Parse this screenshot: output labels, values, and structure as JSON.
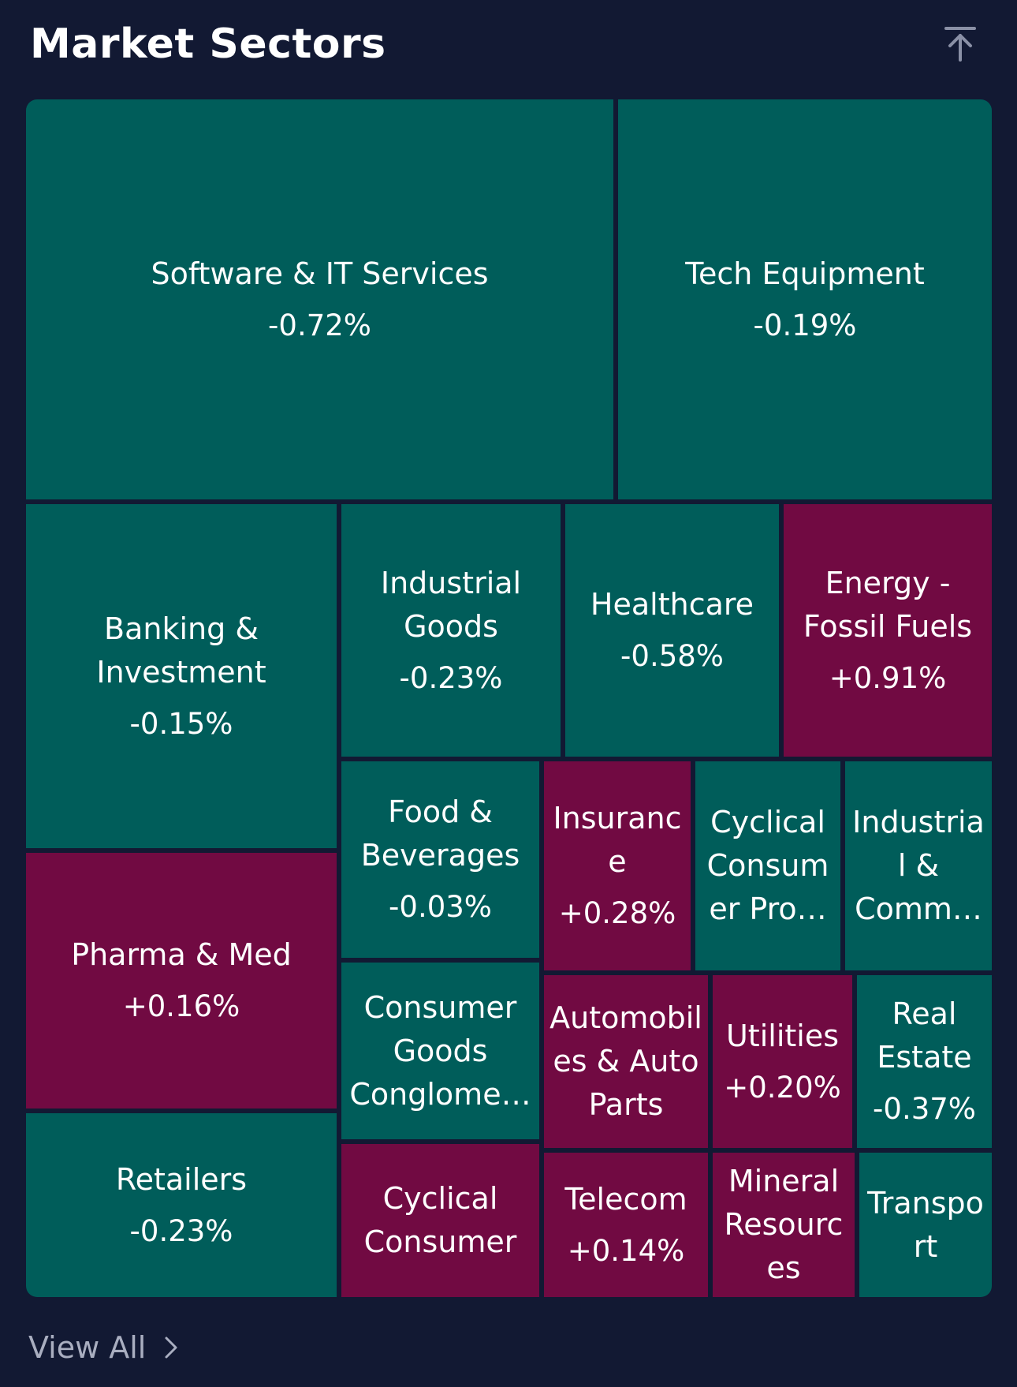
{
  "header": {
    "title": "Market Sectors",
    "collapse_icon": "arrow-up-to-top-icon"
  },
  "colors": {
    "background": "#121933",
    "negative_tile": "#005d5a",
    "positive_tile": "#710a42",
    "muted_text": "#a9aec0"
  },
  "sectors": [
    {
      "name": "Software & IT Services",
      "change": "-0.72%"
    },
    {
      "name": "Tech Equipment",
      "change": "-0.19%"
    },
    {
      "name": "Banking & Investment",
      "change": "-0.15%"
    },
    {
      "name": "Industrial Goods",
      "change": "-0.23%"
    },
    {
      "name": "Healthcare",
      "change": "-0.58%"
    },
    {
      "name": "Energy - Fossil Fuels",
      "change": "+0.91%"
    },
    {
      "name": "Pharma & Med",
      "change": "+0.16%"
    },
    {
      "name": "Food & Beverages",
      "change": "-0.03%"
    },
    {
      "name": "Insurance",
      "change": "+0.28%"
    },
    {
      "name": "Cyclical Consumer Pro…",
      "change": ""
    },
    {
      "name": "Industrial & Comm…",
      "change": ""
    },
    {
      "name": "Retailers",
      "change": "-0.23%"
    },
    {
      "name": "Consumer Goods Conglome…",
      "change": ""
    },
    {
      "name": "Automobiles & Auto Parts",
      "change": ""
    },
    {
      "name": "Utilities",
      "change": "+0.20%"
    },
    {
      "name": "Real Estate",
      "change": "-0.37%"
    },
    {
      "name": "Cyclical Consumer",
      "change": ""
    },
    {
      "name": "Telecom",
      "change": "+0.14%"
    },
    {
      "name": "Mineral Resources",
      "change": ""
    },
    {
      "name": "Transport",
      "change": ""
    }
  ],
  "footer": {
    "view_all_label": "View All",
    "chevron_icon": "chevron-right-icon"
  }
}
